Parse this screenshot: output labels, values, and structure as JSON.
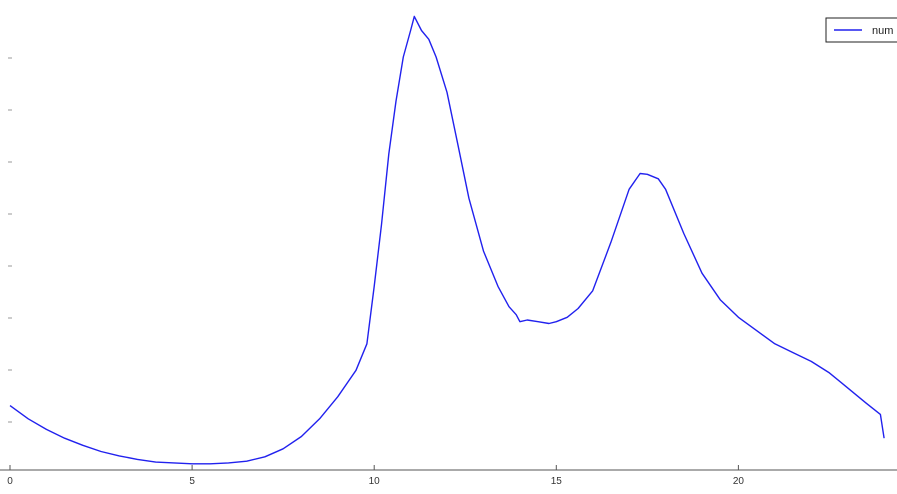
{
  "chart_data": {
    "type": "line",
    "title": "",
    "xlabel": "",
    "ylabel": "",
    "xlim": [
      0,
      24.3
    ],
    "ylim": [
      0.12,
      5.4
    ],
    "grid": false,
    "legend_placement": "top-right",
    "x_tick_values": [
      0,
      5,
      10,
      15,
      20
    ],
    "x_tick_labels": [
      "0",
      "5",
      "10",
      "15",
      "20"
    ],
    "colors": {
      "series": "#2121ee",
      "axis": "#555555",
      "plot_background": "#ffffff"
    },
    "series": [
      {
        "name": "num",
        "color": "#2121ee",
        "x": [
          0,
          0.5,
          1,
          1.5,
          2,
          2.5,
          3,
          3.5,
          4,
          4.5,
          5,
          5.5,
          6,
          6.5,
          7,
          7.5,
          8,
          8.5,
          9,
          9.5,
          9.8,
          10,
          10.2,
          10.4,
          10.6,
          10.8,
          11,
          11.1,
          11.3,
          11.5,
          11.7,
          12,
          12.3,
          12.6,
          13,
          13.4,
          13.7,
          13.9,
          14.0,
          14.2,
          14.5,
          14.8,
          15,
          15.3,
          15.6,
          16,
          16.5,
          17,
          17.3,
          17.5,
          17.8,
          18,
          18.5,
          19,
          19.5,
          20,
          20.5,
          21,
          21.5,
          22,
          22.5,
          23,
          23.5,
          23.9,
          24.0
        ],
        "y": [
          0.85,
          0.7,
          0.58,
          0.48,
          0.4,
          0.33,
          0.28,
          0.24,
          0.21,
          0.2,
          0.19,
          0.19,
          0.2,
          0.22,
          0.27,
          0.36,
          0.5,
          0.7,
          0.95,
          1.25,
          1.55,
          2.2,
          2.9,
          3.7,
          4.3,
          4.8,
          5.1,
          5.26,
          5.1,
          5.0,
          4.8,
          4.4,
          3.8,
          3.2,
          2.6,
          2.2,
          1.97,
          1.88,
          1.8,
          1.82,
          1.8,
          1.78,
          1.8,
          1.85,
          1.95,
          2.15,
          2.7,
          3.3,
          3.48,
          3.47,
          3.42,
          3.3,
          2.8,
          2.35,
          2.05,
          1.85,
          1.7,
          1.55,
          1.45,
          1.35,
          1.22,
          1.05,
          0.88,
          0.75,
          0.48
        ]
      }
    ]
  }
}
